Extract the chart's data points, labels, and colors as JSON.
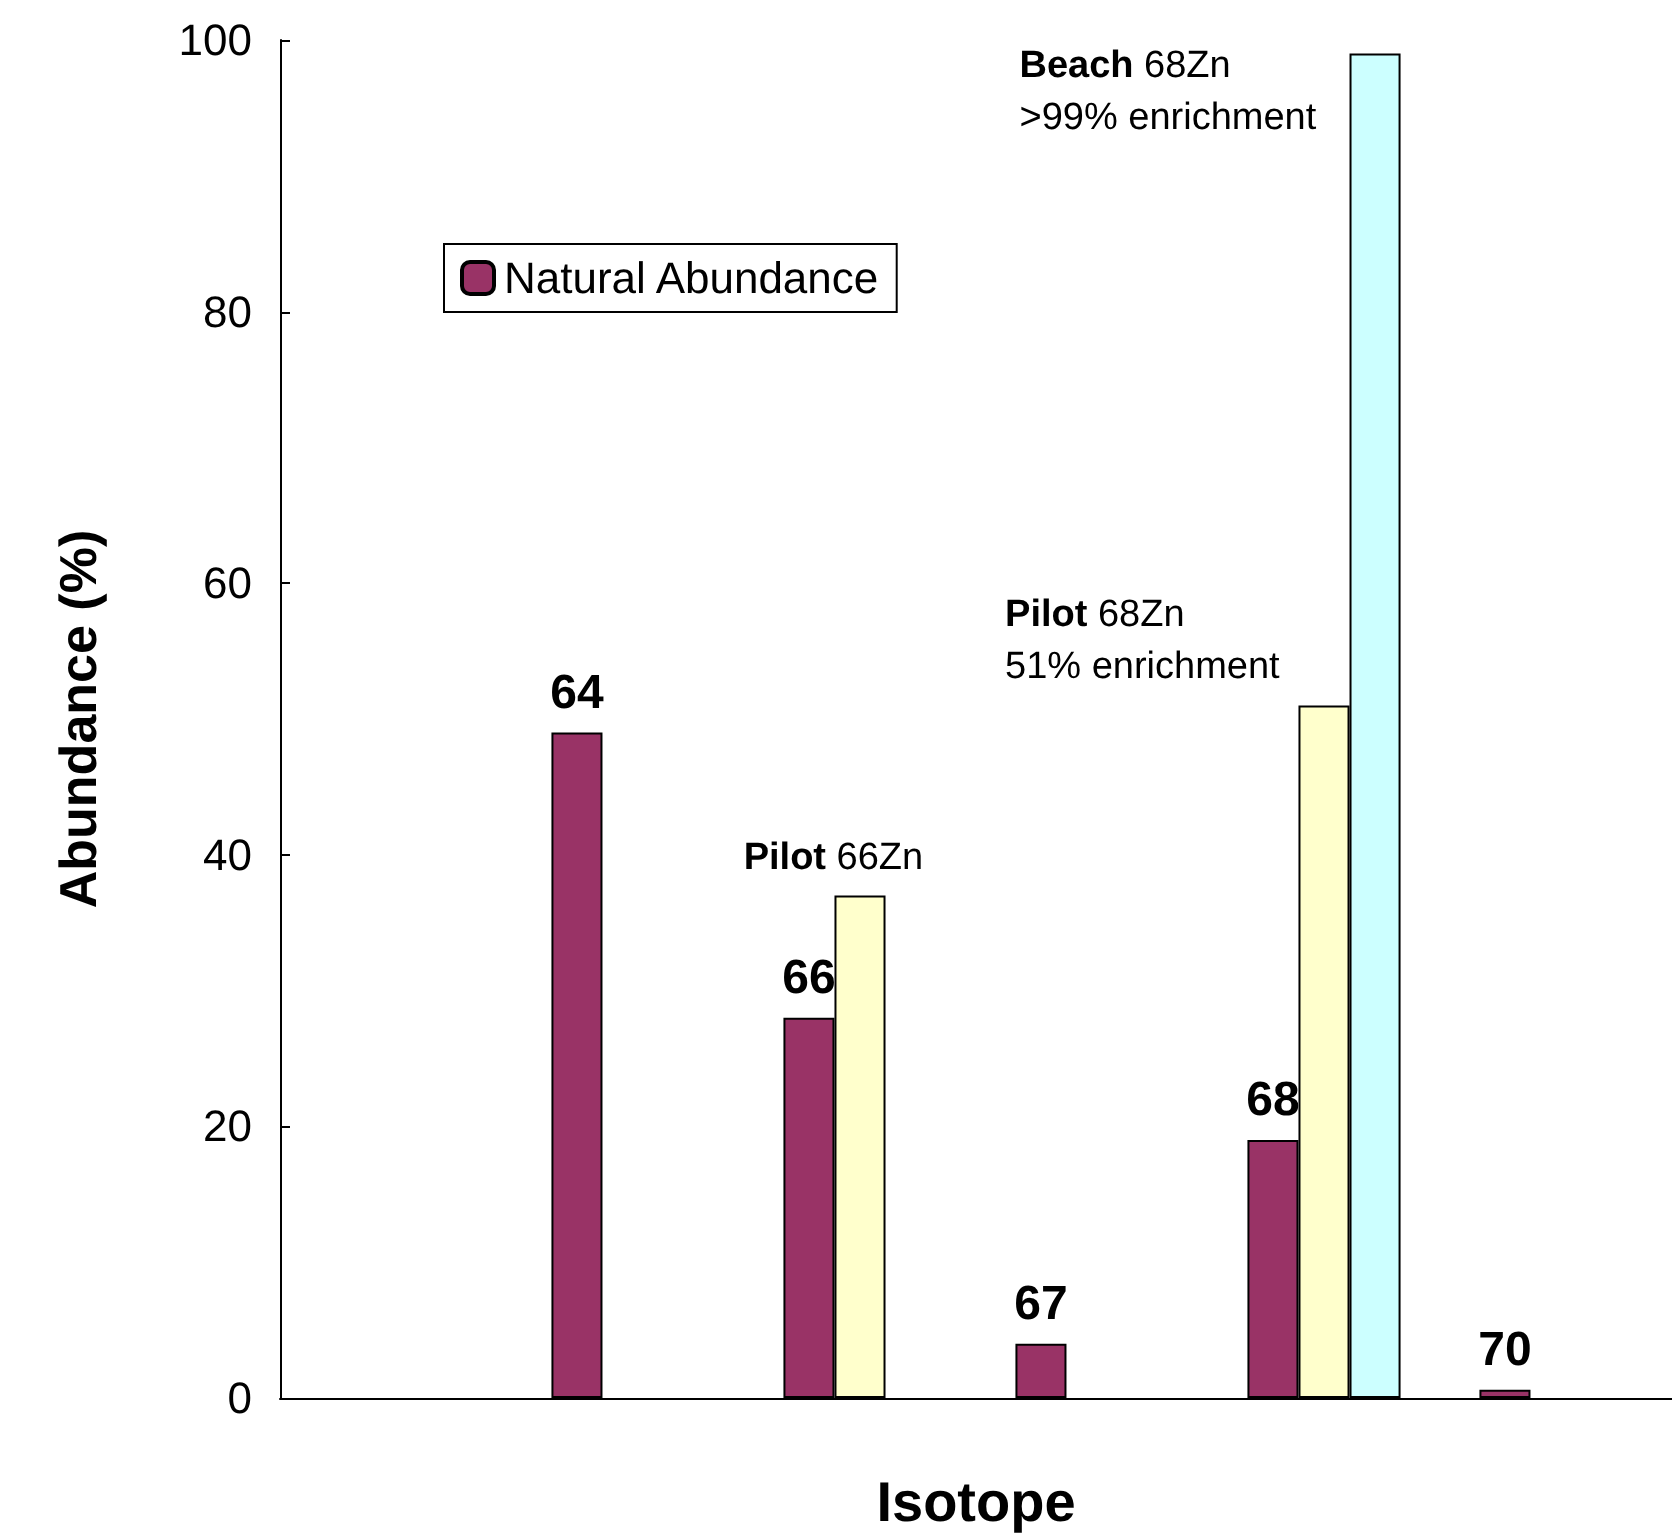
{
  "chart_data": {
    "type": "bar",
    "xlabel": "Isotope",
    "ylabel": "Abundance (%)",
    "categories": [
      null,
      "64",
      "66",
      "67",
      "68",
      "70"
    ],
    "series": [
      {
        "name": "Natural Abundance",
        "color": "#993366",
        "values": [
          null,
          49,
          28,
          4,
          19,
          0.6
        ]
      },
      {
        "color": "#ffffcc",
        "values": [
          null,
          null,
          37,
          null,
          51,
          null
        ]
      },
      {
        "color": "#ccffff",
        "values": [
          null,
          null,
          null,
          null,
          99,
          null
        ]
      }
    ],
    "ylim": [
      0,
      100
    ],
    "yticks": [
      0,
      20,
      40,
      60,
      80,
      100
    ],
    "grid": false,
    "legend": "top left",
    "annotations": [
      {
        "text": "Pilot 66Zn",
        "x": "66",
        "y": 37
      },
      {
        "text": "Pilot 68Zn\n51% enrichment",
        "x": "68",
        "y": 51
      },
      "Beach 68Zn\n>99% enrichment"
    ]
  }
}
